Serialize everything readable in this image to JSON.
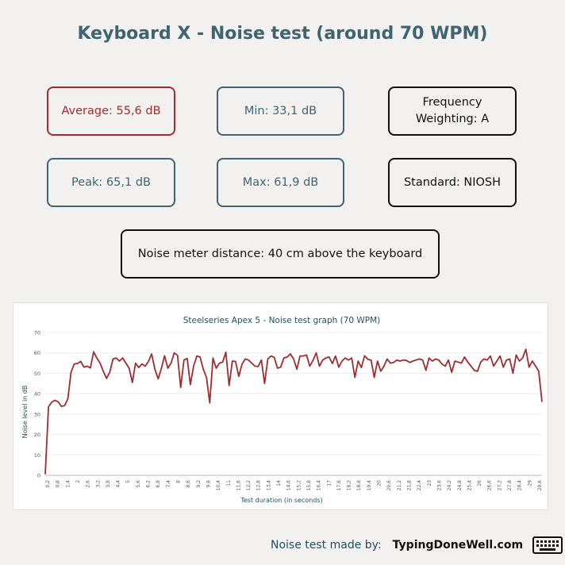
{
  "page": {
    "title": "Keyboard X - Noise test (around 70 WPM)"
  },
  "stats": {
    "average": "Average:  55,6 dB",
    "min": "Min:  33,1 dB",
    "freq_line1": "Frequency",
    "freq_line2": "Weighting:  A",
    "peak": "Peak:  65,1 dB",
    "max": "Max:  61,9 dB",
    "standard": "Standard:  NIOSH",
    "distance": "Noise meter distance:  40 cm above the keyboard"
  },
  "colors": {
    "teal": "#3f6470",
    "red": "#a12c2f",
    "line": "#a12c2f"
  },
  "footer": {
    "label": "Noise test made by:",
    "brand": "TypingDoneWell.com",
    "icon": "keyboard-icon"
  },
  "chart_data": {
    "type": "line",
    "title": "Steelseries Apex 5 - Noise test graph (70 WPM)",
    "xlabel": "Test duration (in seconds)",
    "ylabel": "Noise level in dB",
    "ylim": [
      0,
      70
    ],
    "yticks": [
      0,
      10,
      20,
      30,
      40,
      50,
      60,
      70
    ],
    "xticks": [
      "0,2",
      "0,8",
      "1,4",
      "2",
      "2,6",
      "3,2",
      "3,8",
      "4,4",
      "5",
      "5,6",
      "6,2",
      "6,8",
      "7,4",
      "8",
      "8,6",
      "9,2",
      "9,8",
      "10,4",
      "11",
      "11,6",
      "12,2",
      "12,8",
      "13,4",
      "14",
      "14,6",
      "15,2",
      "15,8",
      "16,4",
      "17",
      "17,6",
      "18,2",
      "18,8",
      "19,4",
      "20",
      "20,6",
      "21,2",
      "21,8",
      "22,4",
      "23",
      "23,6",
      "24,2",
      "24,8",
      "25,4",
      "26",
      "26,6",
      "27,2",
      "27,8",
      "28,4",
      "29",
      "29,6"
    ],
    "grid": true,
    "series": [
      {
        "values": [
          0.5,
          33.5,
          35.8,
          36.8,
          36.0,
          33.8,
          34.2,
          37.5,
          50.5,
          54.6,
          54.8,
          55.8,
          53.0,
          53.5,
          52.6,
          60.5,
          57.5,
          55.0,
          51.0,
          47.5,
          50.5,
          57.0,
          57.5,
          56.0,
          57.5,
          55.0,
          52.5,
          45.5,
          55.0,
          52.8,
          54.6,
          53.5,
          55.8,
          59.5,
          52.0,
          47.3,
          52.3,
          58.6,
          52.5,
          55.0,
          60.0,
          58.8,
          43.0,
          56.5,
          57.3,
          44.5,
          53.5,
          58.5,
          58.0,
          52.0,
          48.0,
          35.5,
          57.5,
          52.5,
          55.0,
          55.5,
          60.3,
          44.0,
          56.0,
          55.8,
          48.5,
          54.5,
          57.0,
          56.5,
          55.0,
          53.5,
          53.3,
          56.5,
          45.0,
          57.0,
          58.5,
          57.8,
          52.5,
          53.0,
          57.5,
          58.0,
          59.5,
          57.0,
          52.0,
          58.5,
          58.5,
          59.0,
          53.5,
          56.3,
          60.0,
          53.5,
          56.5,
          57.5,
          58.0,
          54.8,
          58.5,
          53.0,
          56.0,
          57.5,
          56.5,
          57.5,
          48.0,
          56.0,
          52.8,
          58.6,
          56.8,
          56.5,
          48.0,
          56.0,
          51.0,
          53.5,
          57.0,
          55.0,
          55.3,
          56.5,
          56.0,
          56.5,
          56.3,
          55.3,
          56.0,
          56.5,
          57.0,
          56.5,
          51.5,
          57.5,
          56.0,
          57.0,
          56.5,
          54.5,
          53.5,
          56.5,
          50.5,
          56.0,
          55.5,
          55.0,
          58.0,
          55.5,
          53.5,
          51.5,
          51.0,
          55.5,
          57.0,
          56.5,
          58.5,
          53.5,
          56.0,
          58.5,
          53.0,
          56.5,
          57.0,
          50.0,
          59.0,
          56.0,
          57.5,
          61.8,
          53.0,
          56.0,
          53.5,
          51.0,
          36.0
        ]
      }
    ]
  }
}
